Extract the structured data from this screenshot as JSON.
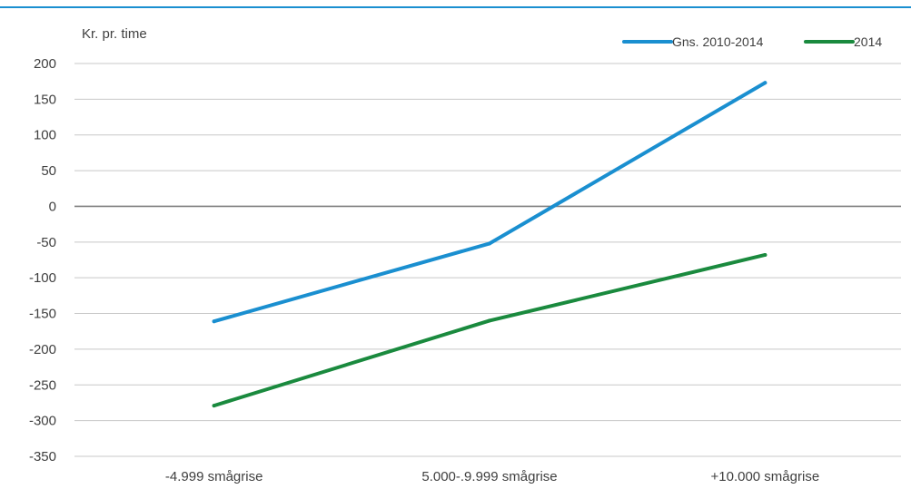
{
  "chart_data": {
    "type": "line",
    "title": "",
    "xlabel": "",
    "ylabel": "Kr. pr. time",
    "categories": [
      "-4.999 smågrise",
      "5.000-.9.999 smågrise",
      "+10.000 smågrise"
    ],
    "series": [
      {
        "name": "Gns. 2010-2014",
        "color": "#1A8FD0",
        "values": [
          -161,
          -52,
          173
        ]
      },
      {
        "name": "2014",
        "color": "#1A8A3E",
        "values": [
          -279,
          -160,
          -68
        ]
      }
    ],
    "ylim": [
      -350,
      200
    ],
    "yticks": [
      200,
      150,
      100,
      50,
      0,
      -50,
      -100,
      -150,
      -200,
      -250,
      -300,
      -350
    ],
    "grid": true,
    "legend_position": "top-right",
    "colors": {
      "top_rule": "#1A8FD0",
      "grid": "#C8C8C8",
      "zero_line": "#7F7F7F",
      "text": "#404040"
    }
  }
}
